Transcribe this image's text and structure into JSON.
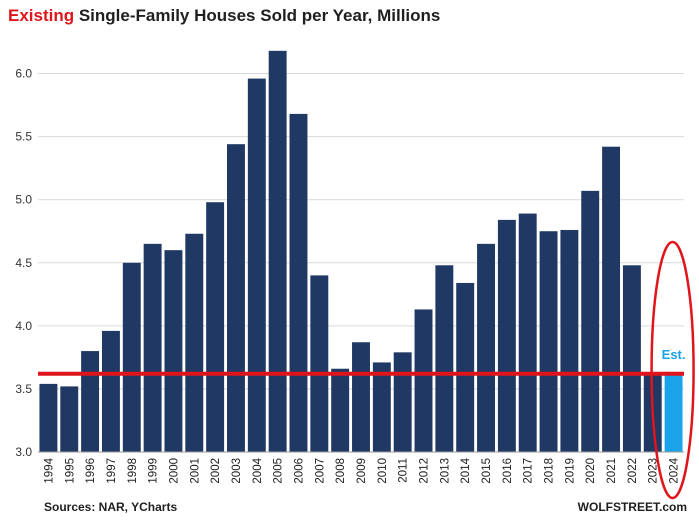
{
  "title_highlight": "Existing",
  "title_rest": " Single-Family Houses Sold per Year, Millions",
  "source": "Sources: NAR, YCharts",
  "brand": "WOLFSTREET.com",
  "colors": {
    "bar": "#1f3864",
    "estimate_bar": "#1aa3e8",
    "reference_line": "#e0151b",
    "highlight_text": "#e0151b",
    "grid": "#d9d9d9"
  },
  "chart_data": {
    "type": "bar",
    "categories": [
      "1994",
      "1995",
      "1996",
      "1997",
      "1998",
      "1999",
      "2000",
      "2001",
      "2002",
      "2003",
      "2004",
      "2005",
      "2006",
      "2007",
      "2008",
      "2009",
      "2010",
      "2011",
      "2012",
      "2013",
      "2014",
      "2015",
      "2016",
      "2017",
      "2018",
      "2019",
      "2020",
      "2021",
      "2022",
      "2023",
      "2024"
    ],
    "values": [
      3.54,
      3.52,
      3.8,
      3.96,
      4.5,
      4.65,
      4.6,
      4.73,
      4.98,
      5.44,
      5.96,
      6.18,
      5.68,
      4.4,
      3.66,
      3.87,
      3.71,
      3.79,
      4.13,
      4.48,
      4.34,
      4.65,
      4.84,
      4.89,
      4.75,
      4.76,
      5.07,
      5.42,
      4.48,
      3.63,
      3.62
    ],
    "estimate_category": "2024",
    "estimate_label": "Est.",
    "reference_line_value": 3.62,
    "yticks": [
      "3.0",
      "3.5",
      "4.0",
      "4.5",
      "5.0",
      "5.5",
      "6.0"
    ],
    "ylim": [
      3.0,
      6.25
    ],
    "grid": true,
    "annotation": "red ellipse circling 2024 estimate",
    "xlabel": "",
    "ylabel": ""
  }
}
